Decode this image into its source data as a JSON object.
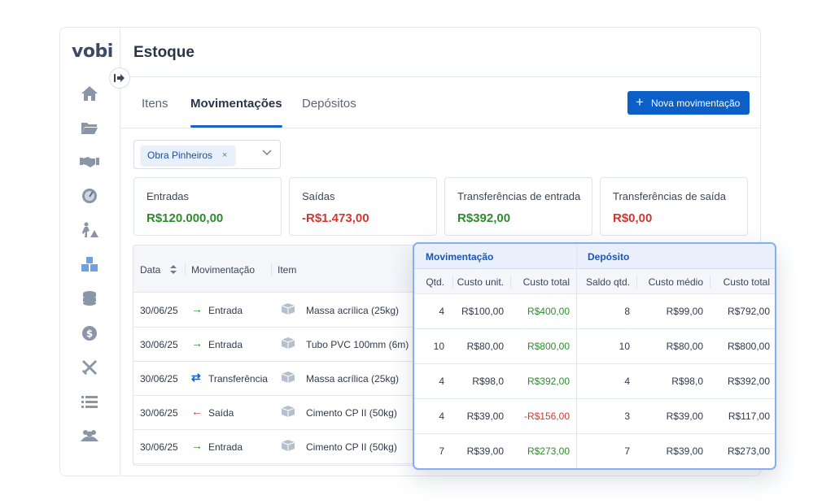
{
  "app": {
    "logo": "vobi",
    "page_title": "Estoque"
  },
  "sidebar": {
    "items": [
      {
        "icon": "home-icon"
      },
      {
        "icon": "folder-icon"
      },
      {
        "icon": "handshake-icon"
      },
      {
        "icon": "gauge-icon"
      },
      {
        "icon": "worker-icon"
      },
      {
        "icon": "boxes-icon"
      },
      {
        "icon": "coins-icon"
      },
      {
        "icon": "dollar-icon"
      },
      {
        "icon": "tools-icon"
      },
      {
        "icon": "list-icon"
      },
      {
        "icon": "users-icon"
      }
    ]
  },
  "tabs": [
    {
      "label": "Itens",
      "active": false
    },
    {
      "label": "Movimentações",
      "active": true
    },
    {
      "label": "Depósitos",
      "active": false
    }
  ],
  "new_button": {
    "label": "Nova movimentação"
  },
  "filter": {
    "chip": "Obra Pinheiros",
    "remove": "×"
  },
  "cards": [
    {
      "label": "Entradas",
      "value": "R$120.000,00",
      "color": "#2e8b2e"
    },
    {
      "label": "Saídas",
      "value": "-R$1.473,00",
      "color": "#d0382f"
    },
    {
      "label": "Transferências de entrada",
      "value": "R$392,00",
      "color": "#2e8b2e"
    },
    {
      "label": "Transferências de saída",
      "value": "R$0,00",
      "color": "#d0382f"
    }
  ],
  "table": {
    "headers": {
      "date": "Data",
      "movement": "Movimentação",
      "item": "Item"
    },
    "rows": [
      {
        "date": "30/06/25",
        "arrow": "→",
        "type": "Entrada",
        "item": "Massa acrílica (25kg)"
      },
      {
        "date": "30/06/25",
        "arrow": "→",
        "type": "Entrada",
        "item": "Tubo PVC 100mm (6m)"
      },
      {
        "date": "30/06/25",
        "arrow": "⇄",
        "type": "Transferência",
        "item": "Massa acrílica (25kg)"
      },
      {
        "date": "30/06/25",
        "arrow": "←",
        "type": "Saída",
        "item": "Cimento CP II (50kg)"
      },
      {
        "date": "30/06/25",
        "arrow": "→",
        "type": "Entrada",
        "item": "Cimento CP II (50kg)"
      }
    ]
  },
  "detail": {
    "groups": {
      "movement": "Movimentação",
      "deposit": "Depósito"
    },
    "headers": {
      "qty": "Qtd.",
      "unit_cost": "Custo unit.",
      "total_cost": "Custo total",
      "balance_qty": "Saldo qtd.",
      "avg_cost": "Custo médio",
      "dep_total_cost": "Custo total"
    },
    "rows": [
      {
        "qty": "4",
        "unit_cost": "R$100,00",
        "total_cost": "R$400,00",
        "balance_qty": "8",
        "avg_cost": "R$99,00",
        "dep_total_cost": "R$792,00"
      },
      {
        "qty": "10",
        "unit_cost": "R$80,00",
        "total_cost": "R$800,00",
        "balance_qty": "10",
        "avg_cost": "R$80,00",
        "dep_total_cost": "R$800,00"
      },
      {
        "qty": "4",
        "unit_cost": "R$98,0",
        "total_cost": "R$392,00",
        "balance_qty": "4",
        "avg_cost": "R$98,0",
        "dep_total_cost": "R$392,00"
      },
      {
        "qty": "4",
        "unit_cost": "R$39,00",
        "total_cost": "-R$156,00",
        "balance_qty": "3",
        "avg_cost": "R$39,00",
        "dep_total_cost": "R$117,00"
      },
      {
        "qty": "7",
        "unit_cost": "R$39,00",
        "total_cost": "R$273,00",
        "balance_qty": "7",
        "avg_cost": "R$39,00",
        "dep_total_cost": "R$273,00"
      }
    ]
  },
  "colors": {
    "positive": "#2e8b2e",
    "negative": "#d0382f",
    "accent": "#0b5fc7",
    "transfer": "#1a63c6"
  }
}
